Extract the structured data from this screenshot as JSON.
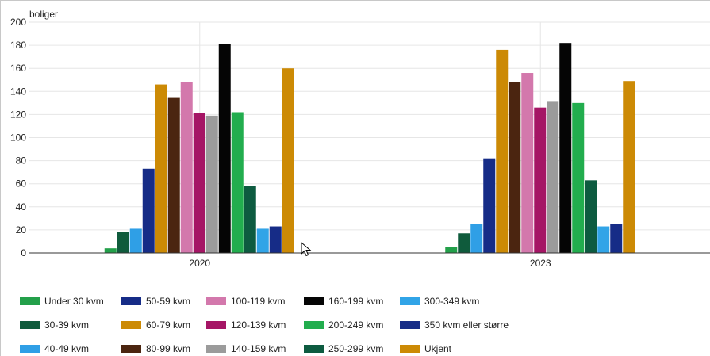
{
  "chart_data": {
    "type": "bar",
    "ylabel": "boliger",
    "ylim": [
      0,
      200
    ],
    "yticks": [
      0,
      20,
      40,
      60,
      80,
      100,
      120,
      140,
      160,
      180,
      200
    ],
    "grid": true,
    "legend_position": "bottom",
    "categories": [
      "2020",
      "2023"
    ],
    "series": [
      {
        "name": "Under 30 kvm",
        "color": "#23a04a",
        "values": [
          4,
          5
        ]
      },
      {
        "name": "30-39 kvm",
        "color": "#0f5b3c",
        "values": [
          18,
          17
        ]
      },
      {
        "name": "40-49 kvm",
        "color": "#2f9fe6",
        "values": [
          21,
          25
        ]
      },
      {
        "name": "50-59 kvm",
        "color": "#162c87",
        "values": [
          73,
          82
        ]
      },
      {
        "name": "60-79 kvm",
        "color": "#cc8a05",
        "values": [
          146,
          176
        ]
      },
      {
        "name": "80-99 kvm",
        "color": "#4b2510",
        "values": [
          135,
          148
        ]
      },
      {
        "name": "100-119 kvm",
        "color": "#d378ac",
        "values": [
          148,
          156
        ]
      },
      {
        "name": "120-139 kvm",
        "color": "#a51565",
        "values": [
          121,
          126
        ]
      },
      {
        "name": "140-159 kvm",
        "color": "#9b9b9b",
        "values": [
          119,
          131
        ]
      },
      {
        "name": "160-199 kvm",
        "color": "#050505",
        "values": [
          181,
          182
        ]
      },
      {
        "name": "200-249 kvm",
        "color": "#22ad4e",
        "values": [
          122,
          130
        ]
      },
      {
        "name": "250-299 kvm",
        "color": "#0d5b40",
        "values": [
          58,
          63
        ]
      },
      {
        "name": "300-349 kvm",
        "color": "#31a4e7",
        "values": [
          21,
          23
        ]
      },
      {
        "name": "350 kvm eller større",
        "color": "#162c87",
        "values": [
          23,
          25
        ]
      },
      {
        "name": "Ukjent",
        "color": "#cc8a05",
        "values": [
          160,
          149
        ]
      }
    ]
  }
}
